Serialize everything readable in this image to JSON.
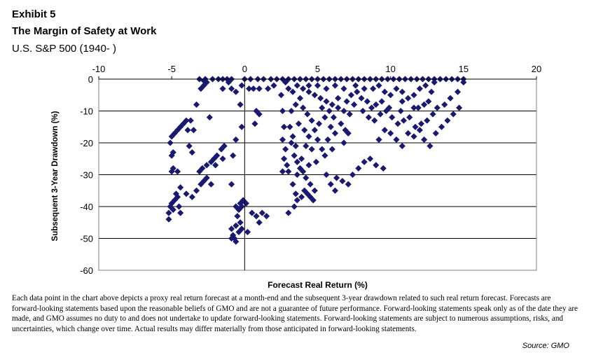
{
  "header": {
    "exhibit": "Exhibit 5",
    "title": "The Margin of Safety at Work",
    "subtitle": "U.S. S&P 500 (1940- )"
  },
  "chart_data": {
    "type": "scatter",
    "xlabel": "Forecast Real Return (%)",
    "ylabel": "Subsequent 3-Year Drawdown (%)",
    "xlim": [
      -10,
      20
    ],
    "ylim": [
      -60,
      0
    ],
    "x_ticks": [
      "-10",
      "-5",
      "0",
      "5",
      "10",
      "15",
      "20"
    ],
    "y_ticks": [
      "0",
      "-10",
      "-20",
      "-30",
      "-40",
      "-50",
      "-60"
    ],
    "x_axis_position": "top",
    "grid": "horizontal",
    "marker": "diamond",
    "color": "#191970",
    "points": [
      [
        -5.2,
        -44
      ],
      [
        -5.2,
        -42
      ],
      [
        -5.1,
        -40
      ],
      [
        -5.0,
        -39
      ],
      [
        -4.9,
        -41
      ],
      [
        -4.8,
        -38
      ],
      [
        -4.7,
        -36
      ],
      [
        -4.6,
        -37
      ],
      [
        -4.5,
        -40
      ],
      [
        -4.4,
        -42
      ],
      [
        -5.0,
        -29
      ],
      [
        -4.9,
        -28
      ],
      [
        -4.6,
        -29
      ],
      [
        -5.0,
        -24
      ],
      [
        -4.9,
        -23
      ],
      [
        -5.1,
        -20
      ],
      [
        -5.0,
        -18
      ],
      [
        -4.8,
        -17
      ],
      [
        -4.6,
        -16
      ],
      [
        -4.4,
        -15
      ],
      [
        -4.2,
        -14
      ],
      [
        -4.0,
        -13
      ],
      [
        -3.7,
        -13
      ],
      [
        -3.9,
        -16
      ],
      [
        -3.5,
        -16
      ],
      [
        -3.8,
        -21
      ],
      [
        -3.6,
        -23
      ],
      [
        -3.3,
        -8
      ],
      [
        -4.4,
        -34
      ],
      [
        -4.0,
        -36
      ],
      [
        -3.6,
        -37
      ],
      [
        -3.3,
        -35
      ],
      [
        -3.0,
        -33
      ],
      [
        -2.8,
        -32
      ],
      [
        -2.6,
        -31
      ],
      [
        -2.3,
        -33
      ],
      [
        -3.1,
        -29
      ],
      [
        -2.9,
        -28
      ],
      [
        -2.6,
        -27
      ],
      [
        -2.3,
        -26
      ],
      [
        -2.1,
        -25
      ],
      [
        -1.9,
        -24
      ],
      [
        -1.6,
        -22
      ],
      [
        -1.4,
        -21
      ],
      [
        -2.0,
        -27
      ],
      [
        -1.5,
        -25
      ],
      [
        -2.4,
        -12
      ],
      [
        -3.0,
        -3
      ],
      [
        -2.8,
        -2
      ],
      [
        -2.6,
        -1
      ],
      [
        -2.8,
        -0.5
      ],
      [
        -3.1,
        0
      ],
      [
        -2.7,
        0
      ],
      [
        -2.2,
        0
      ],
      [
        -1.8,
        0
      ],
      [
        -1.5,
        0
      ],
      [
        -1.2,
        0
      ],
      [
        -0.9,
        0
      ],
      [
        -1.1,
        -1
      ],
      [
        -1.5,
        -3
      ],
      [
        -0.9,
        -3
      ],
      [
        -0.6,
        -4
      ],
      [
        -0.3,
        -8
      ],
      [
        -0.2,
        -15
      ],
      [
        -0.6,
        -19
      ],
      [
        -0.8,
        -24
      ],
      [
        -0.9,
        -33
      ],
      [
        -0.6,
        -40
      ],
      [
        -0.5,
        -43
      ],
      [
        -0.4,
        -41
      ],
      [
        -0.3,
        -39
      ],
      [
        -0.2,
        -40
      ],
      [
        -0.1,
        -38
      ],
      [
        0.1,
        -39
      ],
      [
        -0.3,
        -45
      ],
      [
        -0.6,
        -46
      ],
      [
        -0.9,
        -47
      ],
      [
        -0.8,
        -49
      ],
      [
        -0.7,
        -50
      ],
      [
        -0.6,
        -51
      ],
      [
        -0.9,
        -50
      ],
      [
        -0.4,
        -48
      ],
      [
        -0.2,
        -47
      ],
      [
        0.2,
        -48
      ],
      [
        0.5,
        -42
      ],
      [
        0.8,
        -43
      ],
      [
        1.0,
        -45
      ],
      [
        1.2,
        -42
      ],
      [
        1.5,
        -43
      ],
      [
        -0.2,
        -2
      ],
      [
        0.3,
        -3
      ],
      [
        0.6,
        -3
      ],
      [
        1.0,
        -3
      ],
      [
        1.6,
        -3
      ],
      [
        2.0,
        -2
      ],
      [
        0.8,
        -10
      ],
      [
        1.0,
        -11
      ],
      [
        0.7,
        -14
      ],
      [
        0,
        0
      ],
      [
        0.4,
        0
      ],
      [
        0.9,
        0
      ],
      [
        1.3,
        0
      ],
      [
        1.8,
        0
      ],
      [
        2.2,
        0
      ],
      [
        2.6,
        0
      ],
      [
        3.0,
        0
      ],
      [
        3.4,
        0
      ],
      [
        3.8,
        0
      ],
      [
        4.2,
        0
      ],
      [
        4.6,
        0
      ],
      [
        5.0,
        0
      ],
      [
        5.4,
        0
      ],
      [
        5.8,
        0
      ],
      [
        6.2,
        0
      ],
      [
        6.6,
        0
      ],
      [
        7.0,
        0
      ],
      [
        7.4,
        0
      ],
      [
        7.8,
        0
      ],
      [
        8.2,
        0
      ],
      [
        8.6,
        0
      ],
      [
        9.0,
        0
      ],
      [
        9.4,
        0
      ],
      [
        9.8,
        0
      ],
      [
        10.2,
        0
      ],
      [
        10.6,
        0
      ],
      [
        11.0,
        0
      ],
      [
        11.4,
        0
      ],
      [
        11.8,
        0
      ],
      [
        12.2,
        0
      ],
      [
        12.6,
        0
      ],
      [
        13.0,
        0
      ],
      [
        13.4,
        0
      ],
      [
        13.8,
        0
      ],
      [
        14.2,
        0
      ],
      [
        14.6,
        0
      ],
      [
        15.0,
        0
      ],
      [
        2.5,
        -5
      ],
      [
        2.6,
        -10
      ],
      [
        2.7,
        -15
      ],
      [
        2.6,
        -19
      ],
      [
        2.8,
        -22
      ],
      [
        2.7,
        -25
      ],
      [
        2.9,
        -27
      ],
      [
        3.0,
        -29
      ],
      [
        2.6,
        -29
      ],
      [
        3.2,
        -20
      ],
      [
        3.3,
        -18
      ],
      [
        3.5,
        -21
      ],
      [
        3.4,
        -24
      ],
      [
        3.6,
        -26
      ],
      [
        3.8,
        -28
      ],
      [
        3.6,
        -30
      ],
      [
        3.3,
        -33
      ],
      [
        3.5,
        -36
      ],
      [
        3.0,
        -42
      ],
      [
        3.4,
        -40
      ],
      [
        3.6,
        -38
      ],
      [
        3.9,
        -37
      ],
      [
        4.1,
        -35
      ],
      [
        4.3,
        -36
      ],
      [
        4.5,
        -37
      ],
      [
        4.7,
        -38
      ],
      [
        4.8,
        -35
      ],
      [
        4.5,
        -33
      ],
      [
        4.2,
        -31
      ],
      [
        4.0,
        -29
      ],
      [
        3.2,
        -10
      ],
      [
        3.5,
        -8
      ],
      [
        3.8,
        -6
      ],
      [
        4.0,
        -9
      ],
      [
        4.3,
        -11
      ],
      [
        4.6,
        -13
      ],
      [
        4.8,
        -16
      ],
      [
        5.0,
        -19
      ],
      [
        5.3,
        -22
      ],
      [
        5.5,
        -24
      ],
      [
        3.0,
        -3
      ],
      [
        3.3,
        -4
      ],
      [
        3.6,
        -2
      ],
      [
        4.0,
        -3
      ],
      [
        4.4,
        -4
      ],
      [
        4.8,
        -5
      ],
      [
        5.2,
        -6
      ],
      [
        5.6,
        -7
      ],
      [
        6.0,
        -8
      ],
      [
        6.4,
        -9
      ],
      [
        6.8,
        -10
      ],
      [
        7.2,
        -11
      ],
      [
        3.7,
        -14
      ],
      [
        4.1,
        -16
      ],
      [
        4.4,
        -18
      ],
      [
        4.2,
        -21
      ],
      [
        4.6,
        -22
      ],
      [
        5.1,
        -14
      ],
      [
        5.5,
        -12
      ],
      [
        5.9,
        -15
      ],
      [
        6.2,
        -17
      ],
      [
        6.6,
        -14
      ],
      [
        6.9,
        -16
      ],
      [
        7.3,
        -5
      ],
      [
        7.7,
        -4
      ],
      [
        8.0,
        -6
      ],
      [
        8.4,
        -7
      ],
      [
        8.8,
        -3
      ],
      [
        9.2,
        -2
      ],
      [
        9.6,
        -4
      ],
      [
        10.0,
        -5
      ],
      [
        10.4,
        -3
      ],
      [
        10.8,
        -4
      ],
      [
        11.2,
        -6
      ],
      [
        11.6,
        -5
      ],
      [
        12.0,
        -3
      ],
      [
        12.4,
        -2
      ],
      [
        12.8,
        -4
      ],
      [
        8.1,
        -10
      ],
      [
        8.5,
        -12
      ],
      [
        8.9,
        -13
      ],
      [
        9.3,
        -11
      ],
      [
        9.7,
        -10
      ],
      [
        10.1,
        -12
      ],
      [
        10.5,
        -14
      ],
      [
        10.9,
        -13
      ],
      [
        11.3,
        -12
      ],
      [
        11.7,
        -15
      ],
      [
        12.1,
        -14
      ],
      [
        12.5,
        -13
      ],
      [
        12.9,
        -11
      ],
      [
        10.0,
        -17
      ],
      [
        10.4,
        -19
      ],
      [
        10.8,
        -21
      ],
      [
        11.2,
        -17
      ],
      [
        11.6,
        -18
      ],
      [
        12.0,
        -16
      ],
      [
        12.3,
        -19
      ],
      [
        12.7,
        -21
      ],
      [
        9.2,
        -19
      ],
      [
        9.6,
        -16
      ],
      [
        6.3,
        -31
      ],
      [
        6.7,
        -32
      ],
      [
        7.1,
        -33
      ],
      [
        7.4,
        -30
      ],
      [
        7.8,
        -28
      ],
      [
        8.2,
        -26
      ],
      [
        8.6,
        -25
      ],
      [
        9.0,
        -27
      ],
      [
        9.5,
        -28
      ],
      [
        5.6,
        -30
      ],
      [
        5.9,
        -33
      ],
      [
        6.2,
        -35
      ],
      [
        13.1,
        -17
      ],
      [
        13.5,
        -15
      ],
      [
        13.9,
        -13
      ],
      [
        14.3,
        -11
      ],
      [
        14.7,
        -9
      ],
      [
        13.2,
        -9
      ],
      [
        13.7,
        -8
      ],
      [
        14.1,
        -6
      ],
      [
        14.6,
        -4
      ],
      [
        15.0,
        -1
      ],
      [
        13.0,
        -1
      ],
      [
        12.6,
        -7
      ],
      [
        11.6,
        -9
      ],
      [
        10.8,
        -7
      ],
      [
        9.9,
        -9
      ],
      [
        9.0,
        -8
      ],
      [
        8.2,
        -3
      ],
      [
        7.6,
        -2
      ],
      [
        6.8,
        -3
      ],
      [
        6.2,
        -2
      ],
      [
        5.6,
        -3
      ],
      [
        5.0,
        -2
      ],
      [
        4.4,
        -2
      ],
      [
        2.8,
        -1
      ],
      [
        5.3,
        -9
      ],
      [
        5.8,
        -10
      ],
      [
        6.1,
        -12
      ],
      [
        6.4,
        -6
      ],
      [
        7.0,
        -7
      ],
      [
        7.5,
        -8
      ],
      [
        8.7,
        -9
      ],
      [
        9.4,
        -7
      ],
      [
        10.7,
        -10
      ],
      [
        11.9,
        -9
      ],
      [
        12.3,
        -8
      ],
      [
        3.9,
        -25
      ],
      [
        4.4,
        -27
      ],
      [
        4.9,
        -26
      ],
      [
        3.1,
        -15
      ],
      [
        5.7,
        -19
      ],
      [
        6.0,
        -22
      ],
      [
        6.8,
        -20
      ],
      [
        7.1,
        -17
      ]
    ]
  },
  "footer": {
    "note": "Each data point in the chart above depicts a proxy real return forecast at a month-end and the subsequent 3-year drawdown related to such real return forecast. Forecasts are forward-looking statements based upon the reasonable beliefs of GMO and are not a guarantee of future performance. Forward-looking statements speak only as of the date they are made, and GMO assumes no duty to and does not undertake to update forward-looking statements. Forward-looking statements are subject to numerous assumptions, risks, and uncertainties, which change over time. Actual results may differ materially from those anticipated in forward-looking statements.",
    "source": "Source: GMO"
  }
}
